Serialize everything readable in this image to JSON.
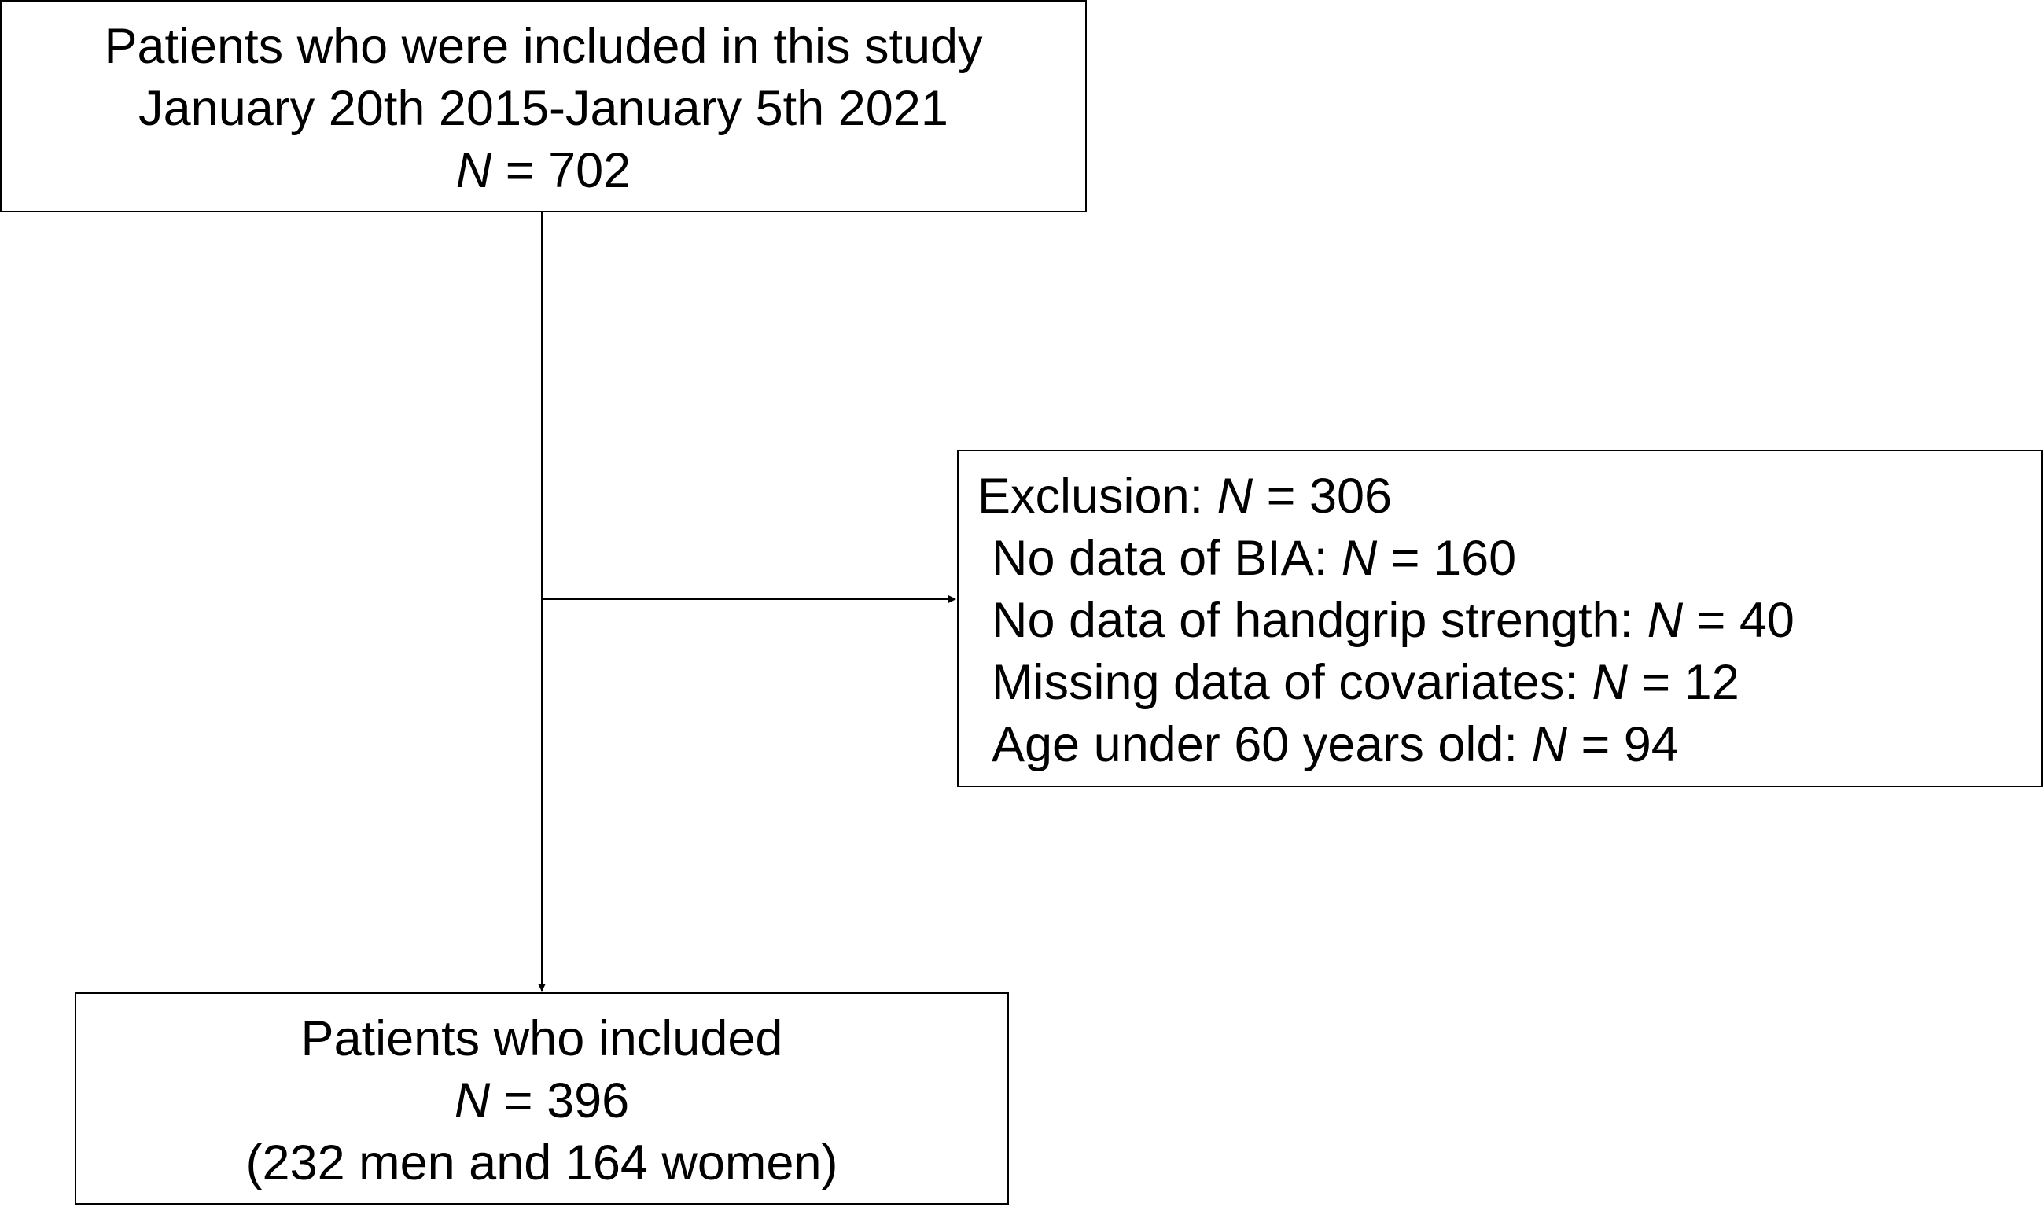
{
  "flowchart": {
    "top_box": {
      "line1": "Patients who were included in this study",
      "line2": "January 20th 2015-January 5th 2021",
      "n_symbol": "N",
      "n_value": " = 702"
    },
    "exclusion_box": {
      "label": "Exclusion: ",
      "n_symbol": "N",
      "n_value": " = 306",
      "items": [
        {
          "label": "No data of BIA: ",
          "n_symbol": "N",
          "n_value": " = 160"
        },
        {
          "label": "No data of handgrip strength: ",
          "n_symbol": "N",
          "n_value": " = 40"
        },
        {
          "label": "Missing data of covariates: ",
          "n_symbol": "N",
          "n_value": " = 12"
        },
        {
          "label": "Age under 60 years old: ",
          "n_symbol": "N",
          "n_value": " = 94"
        }
      ]
    },
    "bottom_box": {
      "line1": "Patients who included",
      "n_symbol": "N",
      "n_value": " = 396",
      "line3": "(232 men and 164 women)"
    }
  }
}
